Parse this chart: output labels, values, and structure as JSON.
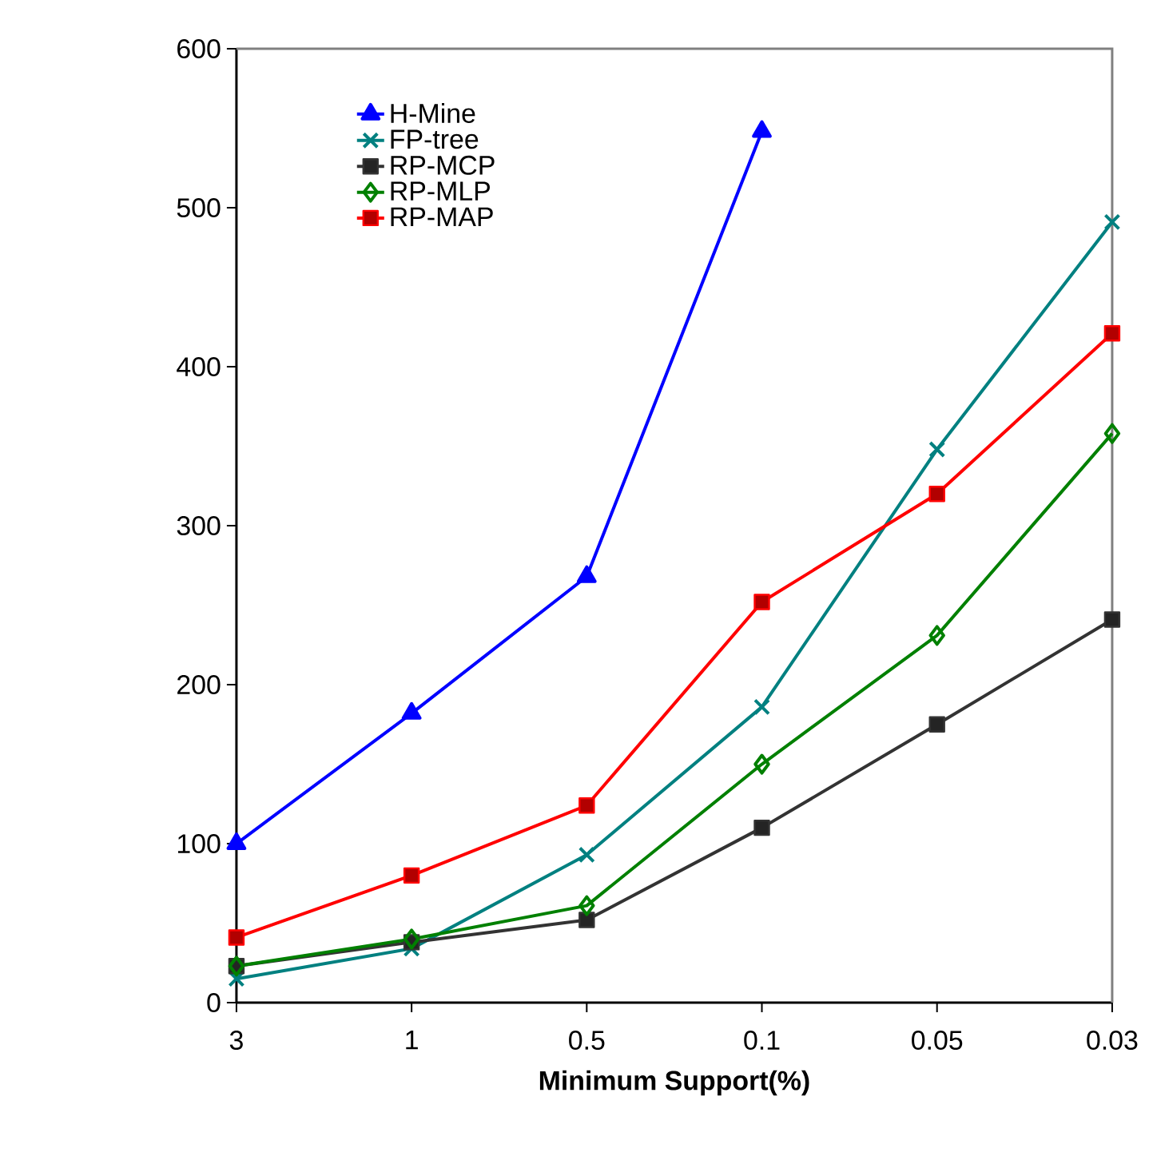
{
  "chart_data": {
    "type": "line",
    "xlabel": "Minimum Support(%)",
    "categories": [
      "3",
      "1",
      "0.5",
      "0.1",
      "0.05",
      "0.03"
    ],
    "ylim": [
      0,
      600
    ],
    "yticks": [
      0,
      100,
      200,
      300,
      400,
      500,
      600
    ],
    "grid": false,
    "legend": "top left",
    "line_style": "solid",
    "series": [
      {
        "name": "H-Mine",
        "color": "#0000ff",
        "marker": "triangle",
        "values": [
          100,
          182,
          268,
          548,
          null,
          null
        ]
      },
      {
        "name": "FP-tree",
        "color": "#008080",
        "marker": "cross",
        "values": [
          15,
          34,
          93,
          186,
          348,
          491
        ]
      },
      {
        "name": "RP-MCP",
        "color": "#333333",
        "marker": "square",
        "values": [
          23,
          38,
          52,
          110,
          175,
          241
        ]
      },
      {
        "name": "RP-MLP",
        "color": "#008000",
        "marker": "diamond",
        "values": [
          23,
          40,
          61,
          150,
          231,
          358
        ]
      },
      {
        "name": "RP-MAP",
        "color": "#ff0000",
        "marker": "square",
        "values": [
          41,
          80,
          124,
          252,
          320,
          421
        ]
      }
    ]
  }
}
